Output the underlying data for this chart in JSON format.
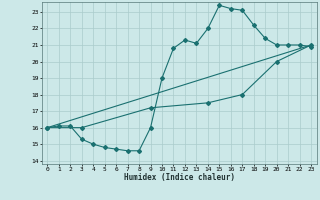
{
  "xlabel": "Humidex (Indice chaleur)",
  "bg_color": "#cce8e8",
  "grid_color": "#aacccc",
  "line_color": "#1a7070",
  "xlim": [
    -0.5,
    23.5
  ],
  "ylim": [
    13.8,
    23.6
  ],
  "yticks": [
    14,
    15,
    16,
    17,
    18,
    19,
    20,
    21,
    22,
    23
  ],
  "xticks": [
    0,
    1,
    2,
    3,
    4,
    5,
    6,
    7,
    8,
    9,
    10,
    11,
    12,
    13,
    14,
    15,
    16,
    17,
    18,
    19,
    20,
    21,
    22,
    23
  ],
  "line1_x": [
    0,
    1,
    2,
    3,
    4,
    5,
    6,
    7,
    8,
    9,
    10,
    11,
    12,
    13,
    14,
    15,
    16,
    17,
    18,
    19,
    20,
    21,
    22,
    23
  ],
  "line1_y": [
    16.0,
    16.1,
    16.1,
    15.3,
    15.0,
    14.8,
    14.7,
    14.6,
    14.6,
    16.0,
    19.0,
    20.8,
    21.3,
    21.1,
    22.0,
    23.4,
    23.2,
    23.1,
    22.2,
    21.4,
    21.0,
    21.0,
    21.0,
    20.9
  ],
  "line2_x": [
    0,
    3,
    9,
    14,
    17,
    20,
    23
  ],
  "line2_y": [
    16.0,
    16.0,
    17.2,
    17.5,
    18.0,
    20.0,
    21.0
  ],
  "line3_x": [
    0,
    23
  ],
  "line3_y": [
    16.0,
    21.0
  ]
}
